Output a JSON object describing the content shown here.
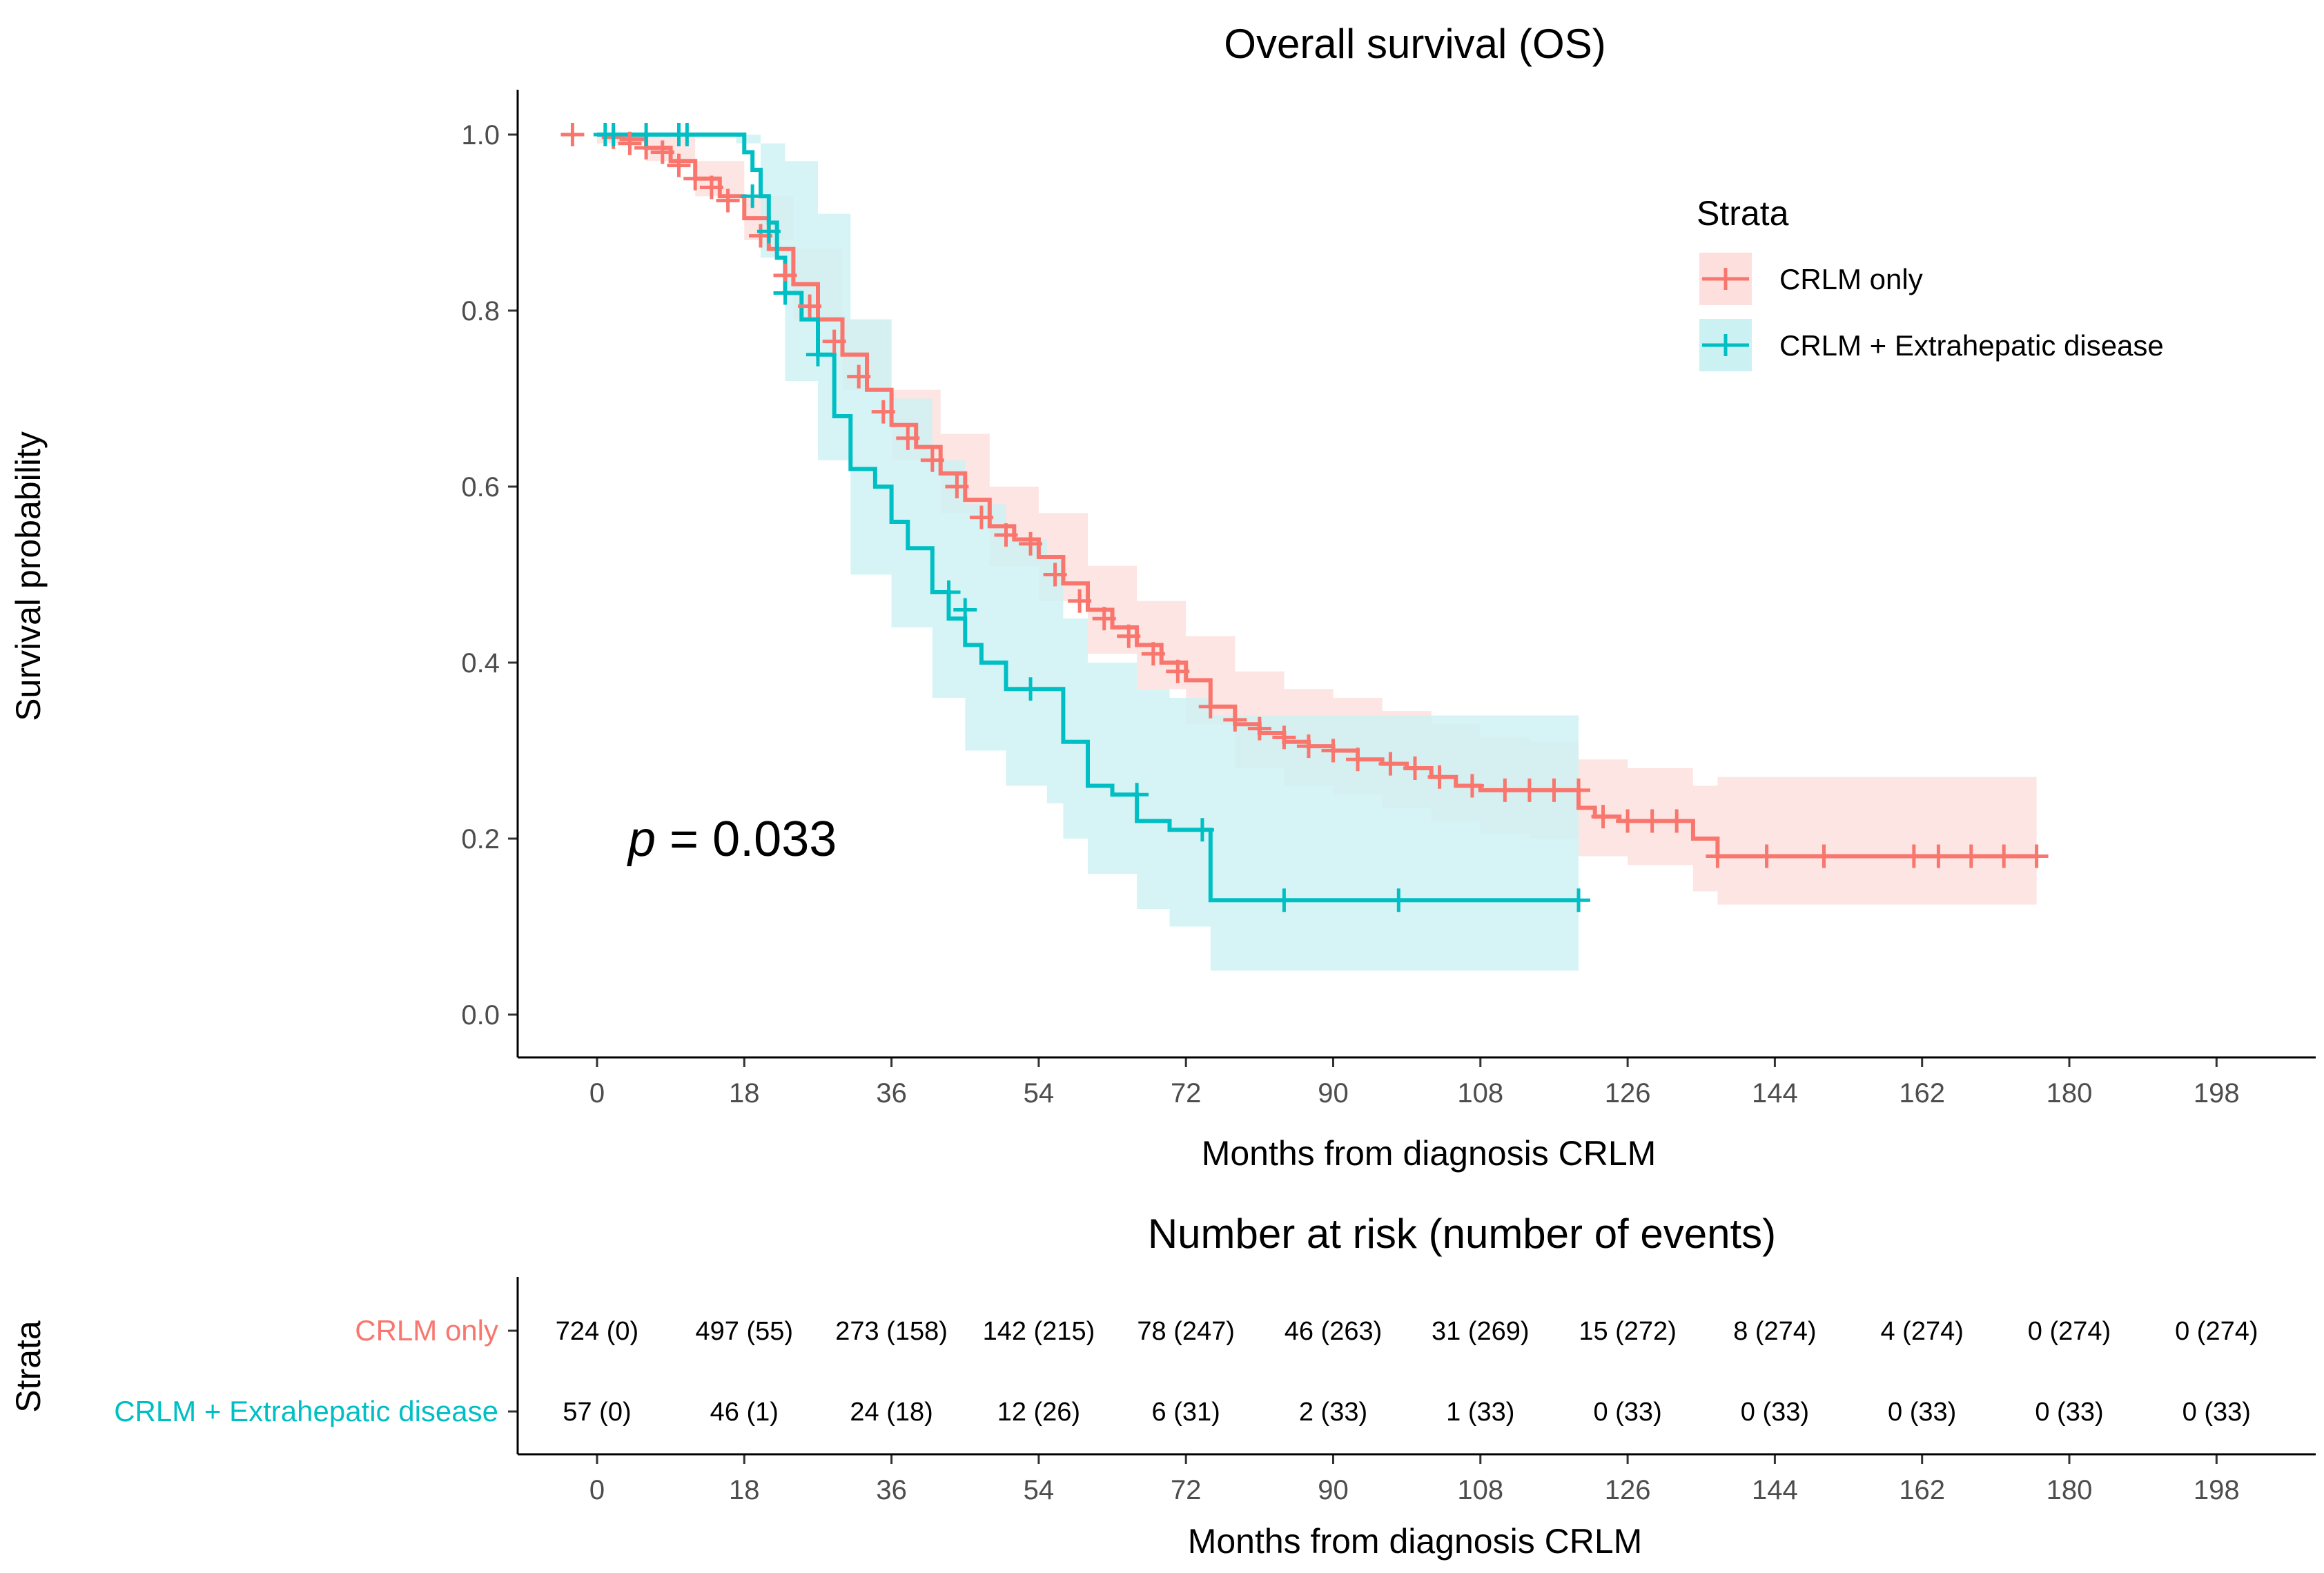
{
  "chart_data": {
    "type": "line",
    "subtype": "kaplan-meier",
    "title": "Overall survival (OS)",
    "xlabel": "Months from diagnosis CRLM",
    "ylabel": "Survival probability",
    "xlim": [
      -6,
      208
    ],
    "ylim": [
      -0.05,
      1.05
    ],
    "xticks": [
      0,
      18,
      36,
      54,
      72,
      90,
      108,
      126,
      144,
      162,
      180,
      198
    ],
    "yticks": [
      0.0,
      0.2,
      0.4,
      0.6,
      0.8,
      1.0
    ],
    "ytick_labels": [
      "0.0",
      "0.2",
      "0.4",
      "0.6",
      "0.8",
      "1.0"
    ],
    "pvalue": {
      "prefix": "p",
      "text": " = 0.033",
      "at": [
        10,
        0.2
      ]
    },
    "legend": {
      "title": "Strata",
      "position": "top-right"
    },
    "series": [
      {
        "name": "CRLM only",
        "color": "#F8766D",
        "fill": "#FDE0DE",
        "curve": [
          [
            0,
            1.0
          ],
          [
            3,
            0.995
          ],
          [
            6,
            0.985
          ],
          [
            9,
            0.97
          ],
          [
            12,
            0.95
          ],
          [
            15,
            0.93
          ],
          [
            18,
            0.905
          ],
          [
            21,
            0.87
          ],
          [
            24,
            0.83
          ],
          [
            27,
            0.79
          ],
          [
            30,
            0.75
          ],
          [
            33,
            0.71
          ],
          [
            36,
            0.67
          ],
          [
            39,
            0.645
          ],
          [
            42,
            0.615
          ],
          [
            45,
            0.585
          ],
          [
            48,
            0.555
          ],
          [
            51,
            0.54
          ],
          [
            54,
            0.52
          ],
          [
            57,
            0.49
          ],
          [
            60,
            0.46
          ],
          [
            63,
            0.44
          ],
          [
            66,
            0.42
          ],
          [
            69,
            0.4
          ],
          [
            72,
            0.38
          ],
          [
            75,
            0.35
          ],
          [
            78,
            0.33
          ],
          [
            81,
            0.32
          ],
          [
            84,
            0.31
          ],
          [
            87,
            0.305
          ],
          [
            90,
            0.3
          ],
          [
            93,
            0.29
          ],
          [
            96,
            0.285
          ],
          [
            99,
            0.28
          ],
          [
            102,
            0.27
          ],
          [
            105,
            0.26
          ],
          [
            108,
            0.255
          ],
          [
            111,
            0.255
          ],
          [
            114,
            0.255
          ],
          [
            117,
            0.255
          ],
          [
            120,
            0.255
          ],
          [
            120,
            0.235
          ],
          [
            122,
            0.225
          ],
          [
            125,
            0.22
          ],
          [
            130,
            0.22
          ],
          [
            134,
            0.22
          ],
          [
            134,
            0.2
          ],
          [
            137,
            0.18
          ],
          [
            150,
            0.18
          ],
          [
            165,
            0.18
          ],
          [
            176,
            0.18
          ]
        ],
        "lower": [
          [
            0,
            0.99
          ],
          [
            6,
            0.97
          ],
          [
            12,
            0.93
          ],
          [
            18,
            0.88
          ],
          [
            24,
            0.79
          ],
          [
            30,
            0.71
          ],
          [
            36,
            0.63
          ],
          [
            42,
            0.57
          ],
          [
            48,
            0.51
          ],
          [
            54,
            0.47
          ],
          [
            60,
            0.41
          ],
          [
            66,
            0.37
          ],
          [
            72,
            0.33
          ],
          [
            78,
            0.28
          ],
          [
            84,
            0.26
          ],
          [
            90,
            0.25
          ],
          [
            96,
            0.235
          ],
          [
            102,
            0.22
          ],
          [
            108,
            0.205
          ],
          [
            114,
            0.2
          ],
          [
            120,
            0.19
          ],
          [
            120,
            0.18
          ],
          [
            126,
            0.17
          ],
          [
            134,
            0.165
          ],
          [
            134,
            0.14
          ],
          [
            137,
            0.125
          ],
          [
            176,
            0.125
          ]
        ],
        "upper": [
          [
            0,
            1.0
          ],
          [
            6,
            1.0
          ],
          [
            12,
            0.97
          ],
          [
            18,
            0.93
          ],
          [
            24,
            0.87
          ],
          [
            30,
            0.79
          ],
          [
            36,
            0.71
          ],
          [
            42,
            0.66
          ],
          [
            48,
            0.6
          ],
          [
            54,
            0.57
          ],
          [
            60,
            0.51
          ],
          [
            66,
            0.47
          ],
          [
            72,
            0.43
          ],
          [
            78,
            0.39
          ],
          [
            84,
            0.37
          ],
          [
            90,
            0.36
          ],
          [
            96,
            0.345
          ],
          [
            102,
            0.33
          ],
          [
            108,
            0.315
          ],
          [
            114,
            0.31
          ],
          [
            120,
            0.31
          ],
          [
            120,
            0.29
          ],
          [
            126,
            0.28
          ],
          [
            134,
            0.28
          ],
          [
            134,
            0.26
          ],
          [
            137,
            0.27
          ],
          [
            176,
            0.27
          ]
        ],
        "censored": [
          [
            -3,
            1.0
          ],
          [
            2,
            0.997
          ],
          [
            4,
            0.99
          ],
          [
            6,
            0.985
          ],
          [
            8,
            0.98
          ],
          [
            10,
            0.965
          ],
          [
            12,
            0.95
          ],
          [
            14,
            0.94
          ],
          [
            16,
            0.925
          ],
          [
            20,
            0.885
          ],
          [
            23,
            0.84
          ],
          [
            26,
            0.805
          ],
          [
            29,
            0.765
          ],
          [
            32,
            0.725
          ],
          [
            35,
            0.685
          ],
          [
            38,
            0.655
          ],
          [
            41,
            0.63
          ],
          [
            44,
            0.6
          ],
          [
            47,
            0.565
          ],
          [
            50,
            0.545
          ],
          [
            53,
            0.535
          ],
          [
            56,
            0.5
          ],
          [
            59,
            0.47
          ],
          [
            62,
            0.45
          ],
          [
            65,
            0.43
          ],
          [
            68,
            0.41
          ],
          [
            71,
            0.39
          ],
          [
            75,
            0.35
          ],
          [
            78,
            0.335
          ],
          [
            81,
            0.325
          ],
          [
            84,
            0.315
          ],
          [
            87,
            0.305
          ],
          [
            90,
            0.3
          ],
          [
            93,
            0.29
          ],
          [
            97,
            0.285
          ],
          [
            100,
            0.28
          ],
          [
            103,
            0.27
          ],
          [
            107,
            0.26
          ],
          [
            111,
            0.255
          ],
          [
            114,
            0.255
          ],
          [
            117,
            0.255
          ],
          [
            120,
            0.255
          ],
          [
            123,
            0.225
          ],
          [
            126,
            0.22
          ],
          [
            129,
            0.22
          ],
          [
            132,
            0.22
          ],
          [
            137,
            0.18
          ],
          [
            143,
            0.18
          ],
          [
            150,
            0.18
          ],
          [
            161,
            0.18
          ],
          [
            164,
            0.18
          ],
          [
            168,
            0.18
          ],
          [
            172,
            0.18
          ],
          [
            176,
            0.18
          ]
        ]
      },
      {
        "name": "CRLM + Extrahepatic disease",
        "color": "#00BFC4",
        "fill": "#CCF1F3",
        "curve": [
          [
            0,
            1.0
          ],
          [
            17,
            1.0
          ],
          [
            18,
            0.98
          ],
          [
            19,
            0.96
          ],
          [
            20,
            0.93
          ],
          [
            21,
            0.9
          ],
          [
            22,
            0.86
          ],
          [
            23,
            0.82
          ],
          [
            25,
            0.79
          ],
          [
            27,
            0.75
          ],
          [
            29,
            0.68
          ],
          [
            31,
            0.62
          ],
          [
            34,
            0.6
          ],
          [
            36,
            0.56
          ],
          [
            38,
            0.53
          ],
          [
            41,
            0.48
          ],
          [
            43,
            0.45
          ],
          [
            45,
            0.42
          ],
          [
            47,
            0.4
          ],
          [
            50,
            0.37
          ],
          [
            52,
            0.37
          ],
          [
            55,
            0.37
          ],
          [
            57,
            0.31
          ],
          [
            60,
            0.26
          ],
          [
            63,
            0.25
          ],
          [
            66,
            0.22
          ],
          [
            70,
            0.21
          ],
          [
            73,
            0.21
          ],
          [
            75,
            0.13
          ],
          [
            84,
            0.13
          ],
          [
            98,
            0.13
          ],
          [
            120,
            0.13
          ]
        ],
        "lower": [
          [
            0,
            1.0
          ],
          [
            17,
            0.99
          ],
          [
            20,
            0.86
          ],
          [
            23,
            0.72
          ],
          [
            27,
            0.63
          ],
          [
            31,
            0.5
          ],
          [
            36,
            0.44
          ],
          [
            41,
            0.36
          ],
          [
            45,
            0.3
          ],
          [
            50,
            0.26
          ],
          [
            55,
            0.24
          ],
          [
            57,
            0.2
          ],
          [
            60,
            0.16
          ],
          [
            66,
            0.12
          ],
          [
            70,
            0.1
          ],
          [
            75,
            0.05
          ],
          [
            120,
            0.05
          ]
        ],
        "upper": [
          [
            0,
            1.0
          ],
          [
            17,
            1.0
          ],
          [
            20,
            0.99
          ],
          [
            23,
            0.97
          ],
          [
            27,
            0.91
          ],
          [
            31,
            0.79
          ],
          [
            36,
            0.7
          ],
          [
            41,
            0.63
          ],
          [
            45,
            0.58
          ],
          [
            50,
            0.54
          ],
          [
            55,
            0.52
          ],
          [
            57,
            0.45
          ],
          [
            60,
            0.4
          ],
          [
            66,
            0.37
          ],
          [
            70,
            0.36
          ],
          [
            75,
            0.34
          ],
          [
            120,
            0.34
          ]
        ],
        "censored": [
          [
            1,
            1.0
          ],
          [
            2,
            1.0
          ],
          [
            6,
            1.0
          ],
          [
            10,
            1.0
          ],
          [
            11,
            1.0
          ],
          [
            19,
            0.93
          ],
          [
            21,
            0.89
          ],
          [
            23,
            0.82
          ],
          [
            27,
            0.75
          ],
          [
            43,
            0.48
          ],
          [
            45,
            0.46
          ],
          [
            53,
            0.37
          ],
          [
            66,
            0.25
          ],
          [
            74,
            0.21
          ],
          [
            84,
            0.13
          ],
          [
            98,
            0.13
          ],
          [
            120,
            0.13
          ]
        ]
      }
    ]
  },
  "risk_table": {
    "title": "Number at risk (number of events)",
    "ylabel": "Strata",
    "xlabel": "Months from diagnosis CRLM",
    "xticks": [
      0,
      18,
      36,
      54,
      72,
      90,
      108,
      126,
      144,
      162,
      180,
      198
    ],
    "rows": [
      {
        "label": "CRLM only",
        "color": "#F8766D",
        "cells": [
          "724 (0)",
          "497 (55)",
          "273 (158)",
          "142 (215)",
          "78 (247)",
          "46 (263)",
          "31 (269)",
          "15 (272)",
          "8 (274)",
          "4 (274)",
          "0 (274)",
          "0 (274)"
        ]
      },
      {
        "label": "CRLM + Extrahepatic disease",
        "color": "#00BFC4",
        "cells": [
          "57 (0)",
          "46 (1)",
          "24 (18)",
          "12 (26)",
          "6 (31)",
          "2 (33)",
          "1 (33)",
          "0 (33)",
          "0 (33)",
          "0 (33)",
          "0 (33)",
          "0 (33)"
        ]
      }
    ]
  }
}
